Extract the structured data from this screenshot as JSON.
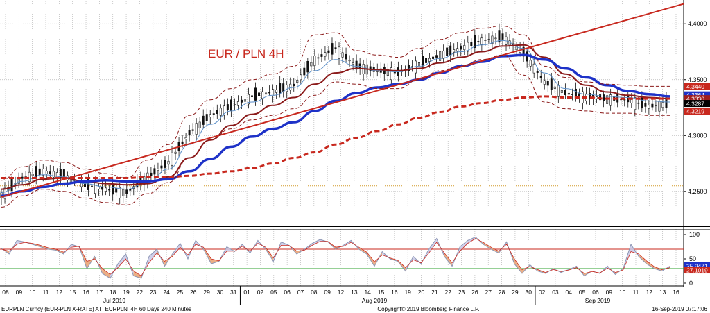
{
  "chart_data": [
    {
      "type": "line",
      "panel": "price",
      "title": "EUR / PLN 4H",
      "ylim": [
        4.235,
        4.42
      ],
      "y_ticks": [
        "4.4000",
        "4.3500",
        "4.3000",
        "4.2500"
      ],
      "y_tick_values": [
        4.4,
        4.35,
        4.3,
        4.25
      ],
      "grid": true,
      "horizontal_reference": 4.255,
      "price_labels": [
        {
          "text": "4.3440",
          "value": 4.344,
          "color": "#c8281e"
        },
        {
          "text": "4.3364",
          "value": 4.3364,
          "color": "#1e32c8"
        },
        {
          "text": "4.3330",
          "value": 4.333,
          "color": "#a01e1e"
        },
        {
          "text": "4.3287",
          "value": 4.3287,
          "color": "#000000"
        },
        {
          "text": "4.3219",
          "value": 4.3219,
          "color": "#c8281e"
        }
      ],
      "series": [
        {
          "values": [
            4.247,
            4.262,
            4.268,
            4.264,
            4.256,
            4.252,
            4.249,
            4.263,
            4.276,
            4.302,
            4.318,
            4.326,
            4.335,
            4.339,
            4.345,
            4.368,
            4.378,
            4.362,
            4.358,
            4.356,
            4.364,
            4.372,
            4.378,
            4.385,
            4.388,
            4.374,
            4.348,
            4.338,
            4.335,
            4.333,
            4.332,
            4.326,
            4.329
          ],
          "color": "#111111",
          "style": "candles"
        },
        {
          "values": [
            4.249,
            4.259,
            4.265,
            4.263,
            4.257,
            4.254,
            4.252,
            4.258,
            4.27,
            4.292,
            4.31,
            4.322,
            4.33,
            4.336,
            4.343,
            4.358,
            4.368,
            4.362,
            4.358,
            4.357,
            4.362,
            4.369,
            4.375,
            4.381,
            4.385,
            4.378,
            4.356,
            4.342,
            4.337,
            4.335,
            4.334,
            4.331,
            4.33
          ],
          "color": "#5a8ec8",
          "style": "thin"
        },
        {
          "values": [
            4.252,
            4.256,
            4.261,
            4.262,
            4.259,
            4.257,
            4.256,
            4.257,
            4.263,
            4.28,
            4.296,
            4.309,
            4.319,
            4.327,
            4.334,
            4.346,
            4.356,
            4.36,
            4.359,
            4.358,
            4.36,
            4.365,
            4.37,
            4.375,
            4.38,
            4.381,
            4.37,
            4.355,
            4.345,
            4.339,
            4.336,
            4.334,
            4.333
          ],
          "color": "#8b1a1a",
          "style": "medium"
        },
        {
          "values": [
            4.246,
            4.25,
            4.254,
            4.257,
            4.259,
            4.26,
            4.259,
            4.259,
            4.261,
            4.268,
            4.279,
            4.29,
            4.299,
            4.306,
            4.312,
            4.322,
            4.331,
            4.338,
            4.343,
            4.346,
            4.35,
            4.356,
            4.362,
            4.366,
            4.371,
            4.372,
            4.368,
            4.36,
            4.352,
            4.345,
            4.34,
            4.337,
            4.335
          ],
          "color": "#1e32c8",
          "style": "thick"
        },
        {
          "values": [
            4.262,
            4.262,
            4.262,
            4.262,
            4.262,
            4.262,
            4.262,
            4.263,
            4.263,
            4.264,
            4.266,
            4.268,
            4.271,
            4.275,
            4.28,
            4.285,
            4.292,
            4.298,
            4.304,
            4.31,
            4.316,
            4.321,
            4.326,
            4.329,
            4.332,
            4.334,
            4.335,
            4.334,
            4.334,
            4.333,
            4.333,
            4.333,
            4.333
          ],
          "color": "#c8281e",
          "style": "dashed-thick"
        },
        {
          "values": [
            4.245,
            4.245,
            4.2488,
            4.2526,
            4.2564,
            4.2602,
            4.264,
            4.2678,
            4.2716,
            4.2754,
            4.2792,
            4.283,
            4.2868,
            4.2906,
            4.2944,
            4.2982,
            4.302,
            4.3058,
            4.3096,
            4.3134,
            4.3172,
            4.321,
            4.3248,
            4.3286,
            4.3324,
            4.3362,
            4.34,
            4.3438,
            4.3476,
            4.3514,
            4.3552,
            4.359,
            4.3628
          ],
          "color": "#c8281e",
          "style": "trendline"
        },
        {
          "values": [
            4.26,
            4.272,
            4.278,
            4.276,
            4.27,
            4.266,
            4.262,
            4.278,
            4.292,
            4.318,
            4.332,
            4.342,
            4.35,
            4.355,
            4.362,
            4.39,
            4.392,
            4.376,
            4.372,
            4.37,
            4.378,
            4.386,
            4.392,
            4.396,
            4.398,
            4.39,
            4.362,
            4.352,
            4.348,
            4.346,
            4.345,
            4.344,
            4.344
          ],
          "color": "#8b1a1a",
          "style": "band-dashed"
        },
        {
          "values": [
            4.236,
            4.246,
            4.252,
            4.25,
            4.244,
            4.24,
            4.238,
            4.248,
            4.258,
            4.28,
            4.296,
            4.306,
            4.314,
            4.318,
            4.324,
            4.336,
            4.348,
            4.346,
            4.342,
            4.342,
            4.35,
            4.358,
            4.362,
            4.368,
            4.372,
            4.354,
            4.33,
            4.324,
            4.322,
            4.32,
            4.32,
            4.318,
            4.318
          ],
          "color": "#8b1a1a",
          "style": "band-dashed"
        }
      ]
    },
    {
      "type": "line",
      "panel": "oscillator",
      "ylim": [
        0,
        100
      ],
      "y_ticks": [
        "100",
        "50",
        "0"
      ],
      "y_tick_values": [
        100,
        50,
        0
      ],
      "reference_lines": [
        {
          "value": 70,
          "color": "#c8281e"
        },
        {
          "value": 30,
          "color": "#2ca02c"
        }
      ],
      "value_labels": [
        {
          "text": "35.9471",
          "value": 35.9471,
          "color": "#1e32c8"
        },
        {
          "text": "27.1019",
          "value": 27.1019,
          "color": "#c8281e"
        }
      ],
      "series": [
        {
          "values": [
            72,
            60,
            88,
            85,
            80,
            75,
            70,
            68,
            60,
            80,
            75,
            30,
            55,
            20,
            10,
            40,
            60,
            15,
            10,
            55,
            70,
            35,
            60,
            82,
            50,
            88,
            70,
            40,
            45,
            75,
            65,
            80,
            62,
            88,
            70,
            45,
            85,
            78,
            60,
            70,
            82,
            90,
            85,
            70,
            78,
            88,
            70,
            60,
            35,
            65,
            50,
            45,
            25,
            55,
            40,
            70,
            92,
            55,
            35,
            75,
            88,
            95,
            80,
            70,
            62,
            85,
            40,
            20,
            38,
            25,
            20,
            30,
            22,
            28,
            35,
            15,
            25,
            20,
            35,
            18,
            30,
            80,
            55,
            40,
            30,
            25,
            35
          ],
          "color": "#8c96b4",
          "fill_above_signal": "#e8a070",
          "fill_below_signal": "#c8c8e6"
        },
        {
          "values": [
            70,
            66,
            80,
            84,
            82,
            78,
            73,
            70,
            64,
            74,
            76,
            45,
            50,
            30,
            18,
            32,
            50,
            25,
            15,
            42,
            62,
            45,
            55,
            74,
            58,
            80,
            74,
            50,
            46,
            66,
            66,
            76,
            66,
            82,
            74,
            52,
            78,
            78,
            66,
            68,
            78,
            86,
            86,
            74,
            76,
            84,
            74,
            64,
            44,
            58,
            52,
            47,
            32,
            48,
            42,
            62,
            84,
            62,
            42,
            66,
            82,
            92,
            84,
            74,
            66,
            80,
            50,
            28,
            34,
            28,
            22,
            28,
            24,
            27,
            32,
            20,
            24,
            21,
            31,
            22,
            27,
            65,
            60,
            46,
            34,
            28,
            32
          ],
          "color": "#c8281e"
        }
      ]
    }
  ],
  "x_axis": {
    "day_labels": [
      "08",
      "09",
      "10",
      "11",
      "12",
      "15",
      "16",
      "17",
      "18",
      "19",
      "22",
      "23",
      "24",
      "25",
      "26",
      "29",
      "30",
      "31",
      "01",
      "02",
      "05",
      "06",
      "07",
      "08",
      "09",
      "12",
      "13",
      "14",
      "15",
      "16",
      "19",
      "20",
      "21",
      "22",
      "23",
      "26",
      "27",
      "28",
      "29",
      "30",
      "02",
      "03",
      "04",
      "05",
      "06",
      "09",
      "10",
      "11",
      "12",
      "13",
      "16"
    ],
    "month_labels": [
      "Jul 2019",
      "Aug 2019",
      "Sep 2019"
    ]
  },
  "footer": {
    "left": "EURPLN Curncy (EUR-PLN X-RATE) AT_EURPLN_4H 60 Days 240 Minutes",
    "center": "Copyright© 2019 Bloomberg Finance L.P.",
    "right": "16-Sep-2019 07:17:06"
  }
}
